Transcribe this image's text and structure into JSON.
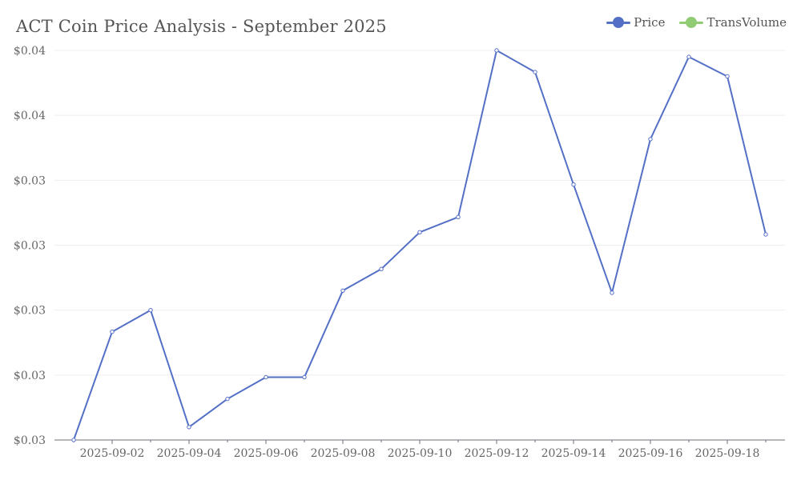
{
  "colors": {
    "price": "#5470c6",
    "transvolume": "#91cc75"
  },
  "chart_data": {
    "type": "line",
    "title": "ACT Coin Price Analysis - September 2025",
    "legend": [
      {
        "name": "Price",
        "color": "#5470c6"
      },
      {
        "name": "TransVolume",
        "color": "#91cc75"
      }
    ],
    "legend_position": "top-right",
    "grid": true,
    "x": [
      "2025-09-01",
      "2025-09-02",
      "2025-09-03",
      "2025-09-04",
      "2025-09-05",
      "2025-09-06",
      "2025-09-07",
      "2025-09-08",
      "2025-09-09",
      "2025-09-10",
      "2025-09-11",
      "2025-09-12",
      "2025-09-13",
      "2025-09-14",
      "2025-09-15",
      "2025-09-16",
      "2025-09-17",
      "2025-09-18",
      "2025-09-19"
    ],
    "x_tick_labels": [
      "2025-09-02",
      "2025-09-04",
      "2025-09-06",
      "2025-09-08",
      "2025-09-10",
      "2025-09-12",
      "2025-09-14",
      "2025-09-16",
      "2025-09-18"
    ],
    "y_tick_labels": [
      "$0.03",
      "$0.03",
      "$0.03",
      "$0.03",
      "$0.03",
      "$0.04",
      "$0.04"
    ],
    "ylim": [
      0.025,
      0.043
    ],
    "series": [
      {
        "name": "Price",
        "values": [
          0.025,
          0.03,
          0.031,
          0.0256,
          0.0269,
          0.0279,
          0.0279,
          0.0319,
          0.0329,
          0.0346,
          0.0353,
          0.043,
          0.042,
          0.0368,
          0.0318,
          0.0389,
          0.0427,
          0.0418,
          0.0345
        ]
      }
    ]
  }
}
